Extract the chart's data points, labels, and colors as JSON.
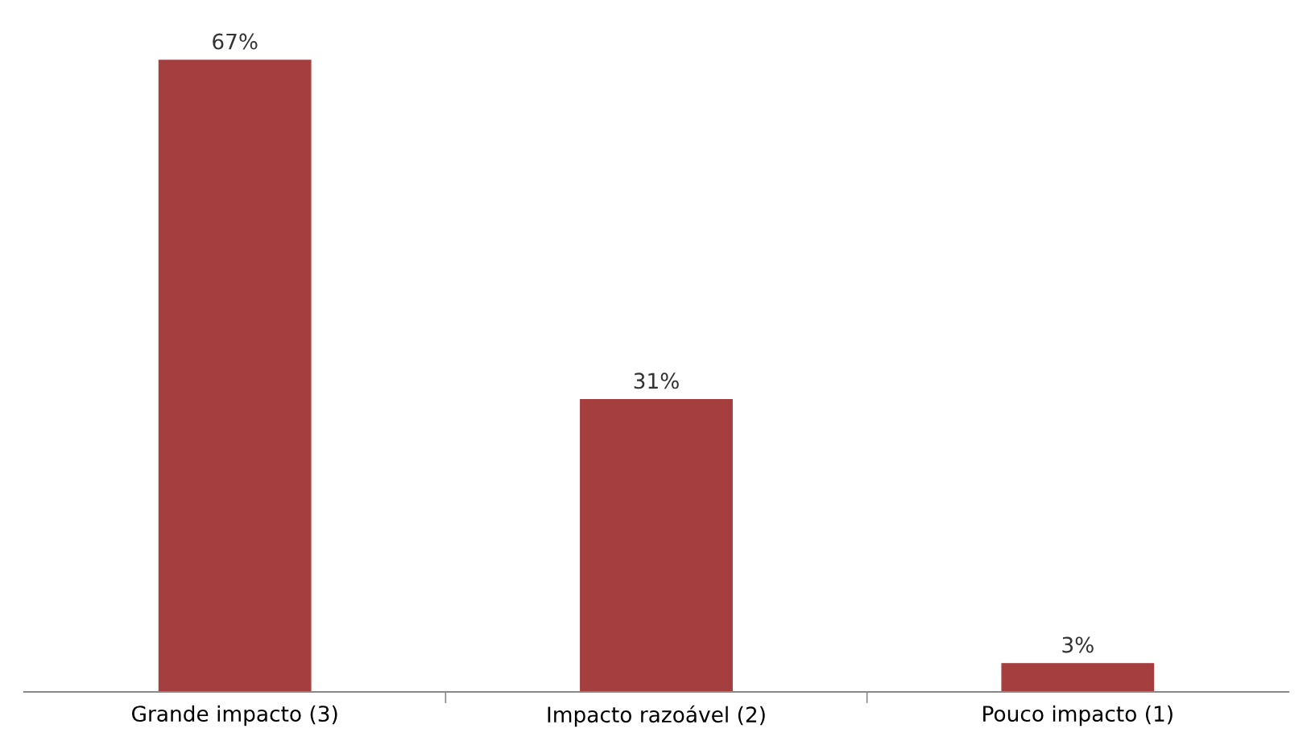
{
  "chart_data": {
    "type": "bar",
    "categories": [
      "Grande impacto (3)",
      "Impacto razoável (2)",
      "Pouco impacto (1)"
    ],
    "values": [
      67,
      31,
      3
    ],
    "value_labels": [
      "67%",
      "31%",
      "3%"
    ],
    "color": "#a53f3f"
  }
}
